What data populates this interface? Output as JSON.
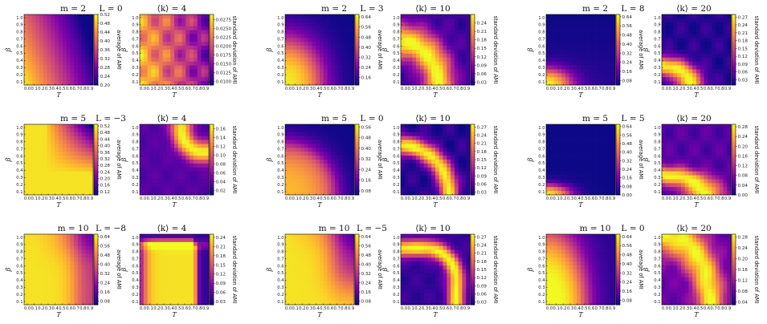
{
  "chart_data": {
    "type": "heatmap",
    "xlabel": "T",
    "ylabel": "β",
    "x_ticks": [
      "0.0",
      "0.1",
      "0.2",
      "0.3",
      "0.4",
      "0.5",
      "0.6",
      "0.7",
      "0.8",
      "0.9"
    ],
    "y_ticks": [
      "0.1",
      "0.2",
      "0.3",
      "0.4",
      "0.5",
      "0.6",
      "0.7",
      "0.8",
      "0.9",
      "1.0"
    ],
    "xlim": [
      0.0,
      0.9
    ],
    "ylim": [
      0.1,
      1.0
    ],
    "colormap": "plasma",
    "avg_label": "average of AMI",
    "std_label": "standard deviation of AMI",
    "groups": [
      {
        "row": 0,
        "col": 0,
        "m_label": "m = 2",
        "L_label": "L = 0",
        "k_label": "⟨k⟩ = 4",
        "avg": {
          "pattern": "avg_m2_L0",
          "ticks": [
            "0.52",
            "0.48",
            "0.44",
            "0.40",
            "0.36",
            "0.32",
            "0.28",
            "0.24",
            "0.20"
          ],
          "range": [
            0.2,
            0.52
          ]
        },
        "std": {
          "pattern": "std_m2_k4",
          "ticks": [
            "0.0275",
            "0.0250",
            "0.0225",
            "0.0200",
            "0.0175",
            "0.0150",
            "0.0125",
            "0.0100"
          ],
          "range": [
            0.009,
            0.029
          ]
        }
      },
      {
        "row": 0,
        "col": 1,
        "m_label": "m = 2",
        "L_label": "L = 3",
        "k_label": "⟨k⟩ = 10",
        "avg": {
          "pattern": "avg_m2_L3",
          "ticks": [
            "0.64",
            "0.56",
            "0.48",
            "0.40",
            "0.32",
            "0.24",
            "0.16"
          ],
          "range": [
            0.1,
            0.66
          ]
        },
        "std": {
          "pattern": "std_m2_k10",
          "ticks": [
            "0.24",
            "0.21",
            "0.18",
            "0.15",
            "0.12",
            "0.09",
            "0.06",
            "0.03"
          ],
          "range": [
            0.02,
            0.27
          ]
        }
      },
      {
        "row": 0,
        "col": 2,
        "m_label": "m = 2",
        "L_label": "L = 8",
        "k_label": "⟨k⟩ = 20",
        "avg": {
          "pattern": "avg_m2_L8",
          "ticks": [
            "0.64",
            "0.56",
            "0.48",
            "0.40",
            "0.32",
            "0.24",
            "0.16",
            "0.08"
          ],
          "range": [
            0.04,
            0.66
          ]
        },
        "std": {
          "pattern": "std_m2_k20",
          "ticks": [
            "0.27",
            "0.24",
            "0.21",
            "0.18",
            "0.15",
            "0.12",
            "0.09",
            "0.06",
            "0.03"
          ],
          "range": [
            0.01,
            0.28
          ]
        }
      },
      {
        "row": 1,
        "col": 0,
        "m_label": "m = 5",
        "L_label": "L = −3",
        "k_label": "⟨k⟩ = 4",
        "avg": {
          "pattern": "avg_m5_Lm3",
          "ticks": [
            "0.52",
            "0.48",
            "0.44",
            "0.40",
            "0.36",
            "0.32",
            "0.28",
            "0.24",
            "0.20",
            "0.16",
            "0.12"
          ],
          "range": [
            0.1,
            0.53
          ]
        },
        "std": {
          "pattern": "std_m5_k4",
          "ticks": [
            "0.16",
            "0.14",
            "0.12",
            "0.10",
            "0.08",
            "0.06",
            "0.04",
            "0.02"
          ],
          "range": [
            0.01,
            0.17
          ]
        }
      },
      {
        "row": 1,
        "col": 1,
        "m_label": "m = 5",
        "L_label": "L = 0",
        "k_label": "⟨k⟩ = 10",
        "avg": {
          "pattern": "avg_m5_L0",
          "ticks": [
            "0.56",
            "0.48",
            "0.40",
            "0.32",
            "0.24",
            "0.16",
            "0.08"
          ],
          "range": [
            0.05,
            0.58
          ]
        },
        "std": {
          "pattern": "std_m5_k10",
          "ticks": [
            "0.27",
            "0.24",
            "0.21",
            "0.18",
            "0.15",
            "0.12",
            "0.09",
            "0.06",
            "0.03"
          ],
          "range": [
            0.02,
            0.28
          ]
        }
      },
      {
        "row": 1,
        "col": 2,
        "m_label": "m = 5",
        "L_label": "L = 5",
        "k_label": "⟨k⟩ = 20",
        "avg": {
          "pattern": "avg_m5_L5",
          "ticks": [
            "0.64",
            "0.56",
            "0.48",
            "0.40",
            "0.32",
            "0.24",
            "0.16",
            "0.08",
            "0.00"
          ],
          "range": [
            0.0,
            0.66
          ]
        },
        "std": {
          "pattern": "std_m5_k20",
          "ticks": [
            "0.28",
            "0.24",
            "0.20",
            "0.16",
            "0.12",
            "0.08",
            "0.04",
            "0.00"
          ],
          "range": [
            0.0,
            0.29
          ]
        }
      },
      {
        "row": 2,
        "col": 0,
        "m_label": "m = 10",
        "L_label": "L = −8",
        "k_label": "⟨k⟩ = 4",
        "avg": {
          "pattern": "avg_m10_Lm8",
          "ticks": [
            "0.64",
            "0.56",
            "0.48",
            "0.40",
            "0.32",
            "0.24",
            "0.16",
            "0.08"
          ],
          "range": [
            0.05,
            0.66
          ]
        },
        "std": {
          "pattern": "std_m10_k4",
          "ticks": [
            "0.24",
            "0.21",
            "0.18",
            "0.15",
            "0.12",
            "0.09",
            "0.06",
            "0.03"
          ],
          "range": [
            0.02,
            0.25
          ]
        }
      },
      {
        "row": 2,
        "col": 1,
        "m_label": "m = 10",
        "L_label": "L = −5",
        "k_label": "⟨k⟩ = 10",
        "avg": {
          "pattern": "avg_m10_Lm5",
          "ticks": [
            "0.64",
            "0.56",
            "0.48",
            "0.40",
            "0.32",
            "0.24",
            "0.16",
            "0.08"
          ],
          "range": [
            0.05,
            0.66
          ]
        },
        "std": {
          "pattern": "std_m10_k10",
          "ticks": [
            "0.27",
            "0.24",
            "0.21",
            "0.18",
            "0.15",
            "0.12",
            "0.09",
            "0.06",
            "0.03"
          ],
          "range": [
            0.02,
            0.28
          ]
        }
      },
      {
        "row": 2,
        "col": 2,
        "m_label": "m = 10",
        "L_label": "L = 0",
        "k_label": "⟨k⟩ = 20",
        "avg": {
          "pattern": "avg_m10_L0",
          "ticks": [
            "0.64",
            "0.56",
            "0.48",
            "0.40",
            "0.32",
            "0.24",
            "0.16",
            "0.08"
          ],
          "range": [
            0.04,
            0.66
          ]
        },
        "std": {
          "pattern": "std_m10_k20",
          "ticks": [
            "0.28",
            "0.24",
            "0.20",
            "0.16",
            "0.12",
            "0.08",
            "0.04"
          ],
          "range": [
            0.03,
            0.29
          ]
        }
      }
    ]
  }
}
